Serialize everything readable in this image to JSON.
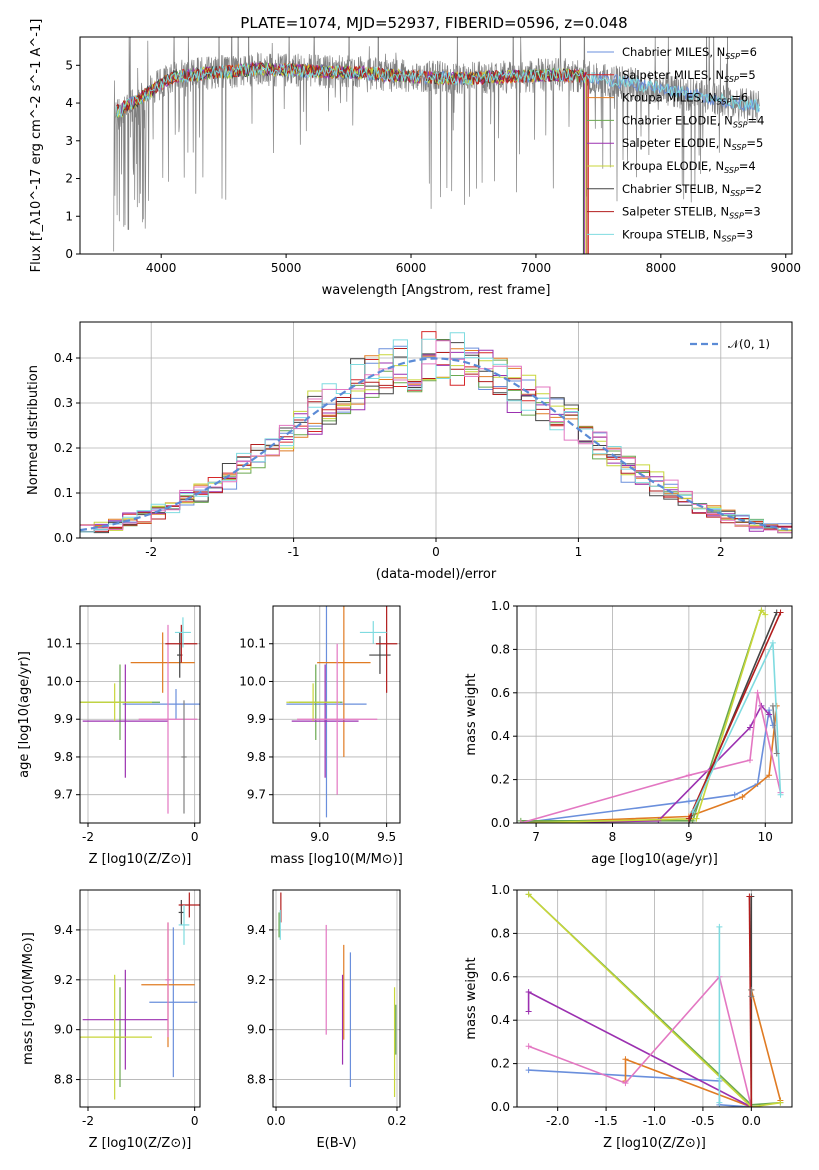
{
  "title": "PLATE=1074, MJD=52937, FIBERID=0596, z=0.048",
  "colors": {
    "Chabrier MILES": "#6a8fdc",
    "Salpeter MILES": "#d62728",
    "Kroupa MILES": "#e07b23",
    "Chabrier ELODIE": "#6aa84f",
    "Salpeter ELODIE": "#9b30b0",
    "Kroupa ELODIE": "#c8d63a",
    "Chabrier STELIB": "#444444",
    "Salpeter STELIB": "#b21e1e",
    "Kroupa STELIB": "#7fdbe0",
    "data": "#808080",
    "normal": "#5b8bd6",
    "pink": "#e377c2"
  },
  "chart_data": [
    {
      "id": "spectrum",
      "type": "line",
      "title": "PLATE=1074, MJD=52937, FIBERID=0596, z=0.048",
      "xlabel": "wavelength [Angstrom, rest frame]",
      "ylabel": "Flux [f_λ10^-17 erg cm^-2 s^-1 A^-1]",
      "xlim": [
        3350,
        9050
      ],
      "ylim": [
        0,
        5.75
      ],
      "xticks": [
        4000,
        5000,
        6000,
        7000,
        8000,
        9000
      ],
      "yticks": [
        0,
        1,
        2,
        3,
        4,
        5
      ],
      "legend": [
        "Chabrier MILES, N_SSP=6",
        "Salpeter MILES, N_SSP=5",
        "Kroupa MILES, N_SSP=6",
        "Chabrier ELODIE, N_SSP=4",
        "Salpeter ELODIE, N_SSP=5",
        "Kroupa ELODIE, N_SSP=4",
        "Chabrier STELIB, N_SSP=2",
        "Salpeter STELIB, N_SSP=3",
        "Kroupa STELIB, N_SSP=3"
      ],
      "legend_sub": "SSP",
      "legend_placement": "upper right",
      "data_range": [
        3620,
        8790
      ],
      "model_continuum": [
        [
          3640,
          3.6
        ],
        [
          3700,
          3.9
        ],
        [
          3800,
          4.05
        ],
        [
          3950,
          4.4
        ],
        [
          4100,
          4.7
        ],
        [
          4400,
          4.8
        ],
        [
          4800,
          4.9
        ],
        [
          5200,
          4.85
        ],
        [
          5600,
          4.8
        ],
        [
          6000,
          4.7
        ],
        [
          6400,
          4.65
        ],
        [
          6800,
          4.7
        ],
        [
          7200,
          4.75
        ],
        [
          7400,
          4.7
        ],
        [
          7800,
          4.5
        ],
        [
          8200,
          4.25
        ],
        [
          8790,
          3.9
        ]
      ]
    },
    {
      "id": "residuals",
      "type": "line",
      "xlabel": "(data-model)/error",
      "ylabel": "Normed distribution",
      "xlim": [
        -2.5,
        2.5
      ],
      "ylim": [
        0,
        0.48
      ],
      "xticks": [
        -2,
        -1,
        0,
        1,
        2
      ],
      "yticks": [
        0.0,
        0.1,
        0.2,
        0.3,
        0.4
      ],
      "legend": [
        "𝒩(0, 1)"
      ],
      "legend_placement": "upper right"
    },
    {
      "id": "age-vs-Z",
      "type": "scatter",
      "xlabel": "Z [log10(Z/Z⊙)]",
      "ylabel": "age [log10(age/yr)]",
      "xlim": [
        -2.15,
        0.1
      ],
      "ylim": [
        9.625,
        10.2
      ],
      "xticks": [
        -2,
        0
      ],
      "yticks": [
        9.7,
        9.8,
        9.9,
        10.0,
        10.1
      ],
      "points": [
        {
          "c": "#6a8fdc",
          "x": -0.35,
          "xe": 1.0,
          "y": 9.94,
          "ye": 0.04
        },
        {
          "c": "#e07b23",
          "x": -0.6,
          "xe": 0.6,
          "y": 10.05,
          "ye": 0.08
        },
        {
          "c": "#6aa84f",
          "x": -1.4,
          "xe": 0.75,
          "y": 9.945,
          "ye": 0.1
        },
        {
          "c": "#9b30b0",
          "x": -1.3,
          "xe": 0.8,
          "y": 9.895,
          "ye": 0.15
        },
        {
          "c": "#c8d63a",
          "x": -1.5,
          "xe": 0.7,
          "y": 9.945,
          "ye": 0.05
        },
        {
          "c": "#e377c2",
          "x": -0.5,
          "xe": 0.55,
          "y": 9.9,
          "ye": 0.25
        },
        {
          "c": "#444444",
          "x": -0.28,
          "xe": 0.05,
          "y": 10.07,
          "ye": 0.06
        },
        {
          "c": "#b21e1e",
          "x": -0.25,
          "xe": 0.3,
          "y": 10.1,
          "ye": 0.05
        },
        {
          "c": "#7fdbe0",
          "x": -0.22,
          "xe": 0.15,
          "y": 10.13,
          "ye": 0.04
        },
        {
          "c": "#808080",
          "x": -0.2,
          "xe": 0.05,
          "y": 9.8,
          "ye": 0.15
        }
      ]
    },
    {
      "id": "age-vs-mass",
      "type": "scatter",
      "xlabel": "mass [log10(M/M⊙)]",
      "ylabel": "",
      "xlim": [
        8.65,
        9.6
      ],
      "ylim": [
        9.625,
        10.2
      ],
      "xticks": [
        9.0,
        9.5
      ],
      "yticks": [
        9.7,
        9.8,
        9.9,
        10.0,
        10.1
      ],
      "points": [
        {
          "c": "#6a8fdc",
          "x": 9.05,
          "xe": 0.3,
          "y": 9.94,
          "ye": 0.3
        },
        {
          "c": "#e07b23",
          "x": 9.18,
          "xe": 0.2,
          "y": 10.05,
          "ye": 0.25
        },
        {
          "c": "#6aa84f",
          "x": 8.97,
          "xe": 0.2,
          "y": 9.945,
          "ye": 0.1
        },
        {
          "c": "#9b30b0",
          "x": 9.04,
          "xe": 0.25,
          "y": 9.895,
          "ye": 0.15
        },
        {
          "c": "#c8d63a",
          "x": 8.95,
          "xe": 0.2,
          "y": 9.945,
          "ye": 0.05
        },
        {
          "c": "#e377c2",
          "x": 9.13,
          "xe": 0.3,
          "y": 9.9,
          "ye": 0.2
        },
        {
          "c": "#444444",
          "x": 9.45,
          "xe": 0.08,
          "y": 10.07,
          "ye": 0.05
        },
        {
          "c": "#b21e1e",
          "x": 9.5,
          "xe": 0.08,
          "y": 10.1,
          "ye": 0.13
        },
        {
          "c": "#7fdbe0",
          "x": 9.4,
          "xe": 0.1,
          "y": 10.13,
          "ye": 0.03
        }
      ]
    },
    {
      "id": "massweight-vs-age",
      "type": "line",
      "xlabel": "age [log10(age/yr)]",
      "ylabel": "mass weight",
      "xlim": [
        6.75,
        10.35
      ],
      "ylim": [
        0,
        1.0
      ],
      "xticks": [
        7,
        8,
        9,
        10
      ],
      "yticks": [
        0.0,
        0.2,
        0.4,
        0.6,
        0.8,
        1.0
      ],
      "series": [
        {
          "c": "#6a8fdc",
          "pts": [
            [
              6.8,
              0.0
            ],
            [
              9.0,
              0.1
            ],
            [
              9.6,
              0.13
            ],
            [
              9.9,
              0.18
            ],
            [
              10.05,
              0.52
            ],
            [
              10.1,
              0.45
            ]
          ]
        },
        {
          "c": "#e07b23",
          "pts": [
            [
              6.8,
              0.0
            ],
            [
              9.0,
              0.03
            ],
            [
              9.7,
              0.12
            ],
            [
              10.05,
              0.22
            ],
            [
              10.15,
              0.54
            ]
          ]
        },
        {
          "c": "#6aa84f",
          "pts": [
            [
              6.8,
              0.01
            ],
            [
              9.05,
              0.01
            ],
            [
              9.95,
              0.98
            ]
          ]
        },
        {
          "c": "#9b30b0",
          "pts": [
            [
              6.8,
              0.0
            ],
            [
              8.6,
              0.01
            ],
            [
              9.8,
              0.44
            ],
            [
              9.95,
              0.54
            ],
            [
              10.05,
              0.5
            ]
          ]
        },
        {
          "c": "#c8d63a",
          "pts": [
            [
              6.8,
              0.0
            ],
            [
              9.1,
              0.02
            ],
            [
              9.95,
              0.98
            ],
            [
              10.0,
              0.96
            ]
          ]
        },
        {
          "c": "#e377c2",
          "pts": [
            [
              6.8,
              0.0
            ],
            [
              9.0,
              0.22
            ],
            [
              9.8,
              0.29
            ],
            [
              9.9,
              0.6
            ],
            [
              10.2,
              0.14
            ]
          ]
        },
        {
          "c": "#444444",
          "pts": [
            [
              9.0,
              0.0
            ],
            [
              10.15,
              0.97
            ]
          ]
        },
        {
          "c": "#b21e1e",
          "pts": [
            [
              9.0,
              0.02
            ],
            [
              10.2,
              0.97
            ]
          ]
        },
        {
          "c": "#7fdbe0",
          "pts": [
            [
              9.05,
              0.05
            ],
            [
              10.1,
              0.83
            ],
            [
              10.2,
              0.13
            ]
          ]
        },
        {
          "c": "#808080",
          "pts": [
            [
              10.1,
              0.54
            ],
            [
              10.15,
              0.32
            ]
          ]
        }
      ]
    },
    {
      "id": "mass-vs-Z",
      "type": "scatter",
      "xlabel": "Z [log10(Z/Z⊙)]",
      "ylabel": "mass [log10(M/M⊙)]",
      "xlim": [
        -2.15,
        0.1
      ],
      "ylim": [
        8.69,
        9.56
      ],
      "xticks": [
        -2,
        0
      ],
      "yticks": [
        8.8,
        9.0,
        9.2,
        9.4
      ],
      "points": [
        {
          "c": "#6a8fdc",
          "x": -0.4,
          "xe": 0.45,
          "y": 9.11,
          "ye": 0.3
        },
        {
          "c": "#e07b23",
          "x": -0.5,
          "xe": 0.5,
          "y": 9.18,
          "ye": 0.25
        },
        {
          "c": "#6aa84f",
          "x": -1.4,
          "xe": 0.1,
          "y": 8.97,
          "ye": 0.2
        },
        {
          "c": "#9b30b0",
          "x": -1.3,
          "xe": 0.8,
          "y": 9.04,
          "ye": 0.2
        },
        {
          "c": "#c8d63a",
          "x": -1.5,
          "xe": 0.7,
          "y": 8.97,
          "ye": 0.25
        },
        {
          "c": "#e377c2",
          "x": -0.5,
          "xe": 0.05,
          "y": 9.2,
          "ye": 0.23
        },
        {
          "c": "#444444",
          "x": -0.25,
          "xe": 0.05,
          "y": 9.47,
          "ye": 0.05
        },
        {
          "c": "#b21e1e",
          "x": -0.1,
          "xe": 0.2,
          "y": 9.5,
          "ye": 0.05
        },
        {
          "c": "#7fdbe0",
          "x": -0.2,
          "xe": 0.1,
          "y": 9.42,
          "ye": 0.08
        }
      ]
    },
    {
      "id": "mass-vs-EBV",
      "type": "scatter",
      "xlabel": "E(B-V)",
      "ylabel": "",
      "xlim": [
        -0.005,
        0.205
      ],
      "ylim": [
        8.69,
        9.56
      ],
      "xticks": [
        0.0,
        0.2
      ],
      "yticks": [
        8.8,
        9.0,
        9.2,
        9.4
      ],
      "points": [
        {
          "c": "#b21e1e",
          "x": 0.008,
          "xe": 0.0,
          "y": 9.49,
          "ye": 0.06
        },
        {
          "c": "#7fdbe0",
          "x": 0.007,
          "xe": 0.0,
          "y": 9.42,
          "ye": 0.06
        },
        {
          "c": "#6aa84f",
          "x": 0.005,
          "xe": 0.0,
          "y": 9.42,
          "ye": 0.05
        },
        {
          "c": "#e377c2",
          "x": 0.083,
          "xe": 0.0,
          "y": 9.2,
          "ye": 0.22
        },
        {
          "c": "#9b30b0",
          "x": 0.11,
          "xe": 0.0,
          "y": 9.04,
          "ye": 0.18
        },
        {
          "c": "#e07b23",
          "x": 0.112,
          "xe": 0.0,
          "y": 9.15,
          "ye": 0.19
        },
        {
          "c": "#6a8fdc",
          "x": 0.123,
          "xe": 0.0,
          "y": 9.04,
          "ye": 0.27
        },
        {
          "c": "#c8d63a",
          "x": 0.196,
          "xe": 0.0,
          "y": 8.95,
          "ye": 0.22
        },
        {
          "c": "#6aa84f",
          "x": 0.198,
          "xe": 0.0,
          "y": 9.0,
          "ye": 0.1
        }
      ]
    },
    {
      "id": "massweight-vs-Z",
      "type": "line",
      "xlabel": "Z [log10(Z/Z⊙)]",
      "ylabel": "mass weight",
      "xlim": [
        -2.42,
        0.42
      ],
      "ylim": [
        0,
        1.0
      ],
      "xticks": [
        -2.0,
        -1.5,
        -1.0,
        -0.5,
        0.0
      ],
      "yticks": [
        0.0,
        0.2,
        0.4,
        0.6,
        0.8,
        1.0
      ],
      "series": [
        {
          "c": "#6a8fdc",
          "pts": [
            [
              -2.3,
              0.17
            ],
            [
              -0.33,
              0.12
            ],
            [
              -0.33,
              0.01
            ],
            [
              0.0,
              0.0
            ]
          ]
        },
        {
          "c": "#e07b23",
          "pts": [
            [
              -1.3,
              0.12
            ],
            [
              -1.3,
              0.22
            ],
            [
              -0.0,
              0.0
            ],
            [
              0.0,
              0.54
            ],
            [
              0.3,
              0.03
            ]
          ]
        },
        {
          "c": "#6aa84f",
          "pts": [
            [
              -2.3,
              0.98
            ],
            [
              0.0,
              0.01
            ],
            [
              0.3,
              0.02
            ]
          ]
        },
        {
          "c": "#9b30b0",
          "pts": [
            [
              -2.3,
              0.44
            ],
            [
              -2.3,
              0.53
            ],
            [
              0.0,
              0.0
            ]
          ]
        },
        {
          "c": "#c8d63a",
          "pts": [
            [
              -2.3,
              0.98
            ],
            [
              0.0,
              0.0
            ],
            [
              0.3,
              0.02
            ]
          ]
        },
        {
          "c": "#e377c2",
          "pts": [
            [
              -2.3,
              0.28
            ],
            [
              -1.3,
              0.11
            ],
            [
              -0.33,
              0.6
            ],
            [
              0.0,
              0.0
            ]
          ]
        },
        {
          "c": "#444444",
          "pts": [
            [
              -0.0,
              0.97
            ],
            [
              0.0,
              0.0
            ]
          ]
        },
        {
          "c": "#b21e1e",
          "pts": [
            [
              -0.02,
              0.97
            ],
            [
              0.0,
              0.0
            ]
          ]
        },
        {
          "c": "#7fdbe0",
          "pts": [
            [
              -0.33,
              0.83
            ],
            [
              -0.33,
              0.02
            ],
            [
              -0.33,
              0.13
            ]
          ]
        },
        {
          "c": "#808080",
          "pts": [
            [
              0.0,
              0.54
            ],
            [
              0.0,
              0.51
            ]
          ]
        }
      ]
    }
  ]
}
